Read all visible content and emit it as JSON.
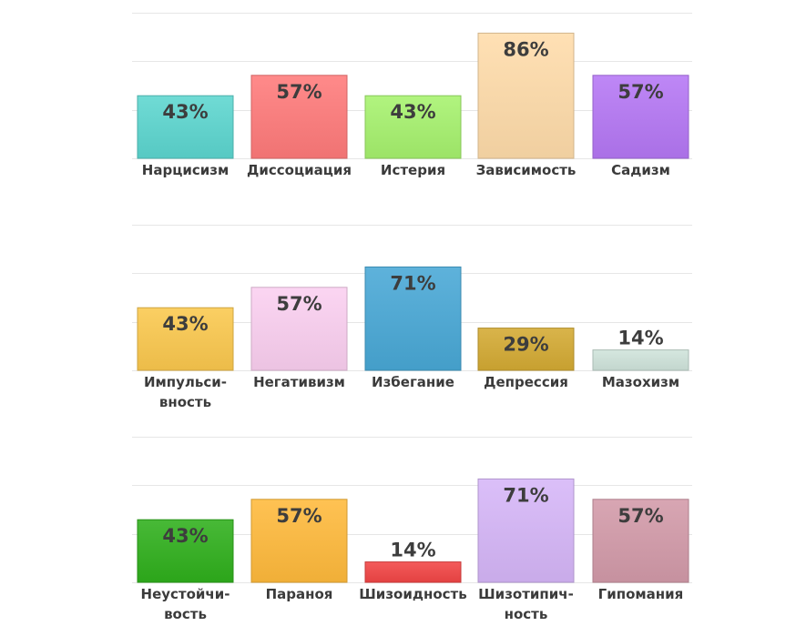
{
  "chart_data": [
    {
      "type": "bar",
      "categories": [
        "Нарцисизм",
        "Диссоциация",
        "Истерия",
        "Зависимость",
        "Садизм"
      ],
      "values": [
        43,
        57,
        43,
        86,
        57
      ],
      "value_labels": [
        "43%",
        "57%",
        "43%",
        "86%",
        "57%"
      ],
      "colors": [
        "#5cd6cf",
        "#ff7a7a",
        "#a6f26e",
        "#ffdcaa",
        "#b577f5"
      ],
      "ylim": [
        0,
        100
      ],
      "grid": true,
      "legend": "none"
    },
    {
      "type": "bar",
      "categories": [
        "Импульси-\nвность",
        "Негативизм",
        "Избегание",
        "Депрессия",
        "Мазохизм"
      ],
      "values": [
        43,
        57,
        71,
        29,
        14
      ],
      "value_labels": [
        "43%",
        "57%",
        "71%",
        "29%",
        "14%"
      ],
      "colors": [
        "#fbc84e",
        "#fbcff0",
        "#48a8d6",
        "#d4aa33",
        "#cfe4db"
      ],
      "ylim": [
        0,
        100
      ],
      "grid": true,
      "legend": "none"
    },
    {
      "type": "bar",
      "categories": [
        "Неустойчи-\nвость",
        "Параноя",
        "Шизоидность",
        "Шизотипич-\nность",
        "Гипомания"
      ],
      "values": [
        43,
        57,
        14,
        71,
        57
      ],
      "value_labels": [
        "43%",
        "57%",
        "14%",
        "71%",
        "57%"
      ],
      "colors": [
        "#2fb01c",
        "#ffba3c",
        "#f24545",
        "#d6b6f8",
        "#d39aa9"
      ],
      "ylim": [
        0,
        100
      ],
      "grid": true,
      "legend": "none"
    }
  ]
}
